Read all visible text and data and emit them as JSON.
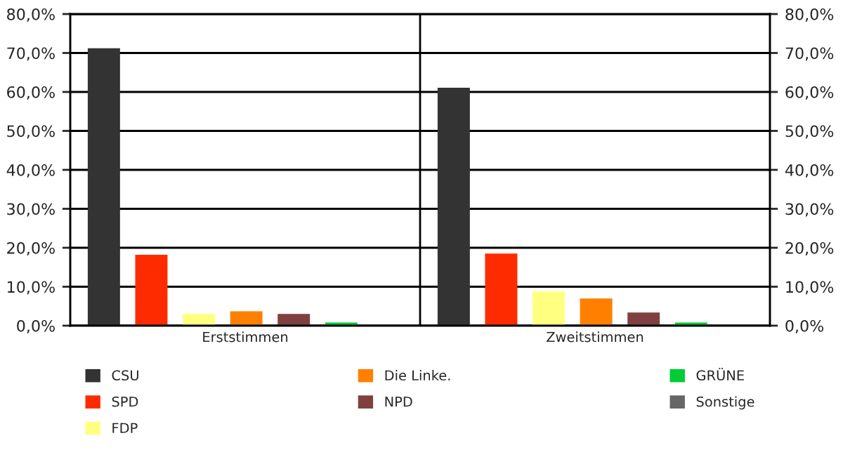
{
  "chart_data": {
    "type": "bar",
    "categories": [
      "Erststimmen",
      "Zweitstimmen"
    ],
    "series": [
      {
        "name": "CSU",
        "color": "#333333",
        "values": [
          71.2,
          61.1
        ]
      },
      {
        "name": "SPD",
        "color": "#ff2b00",
        "values": [
          18.2,
          18.5
        ]
      },
      {
        "name": "FDP",
        "color": "#ffff80",
        "values": [
          3.0,
          8.8
        ]
      },
      {
        "name": "Die Linke.",
        "color": "#ff8000",
        "values": [
          3.7,
          7.0
        ]
      },
      {
        "name": "NPD",
        "color": "#804040",
        "values": [
          3.0,
          3.4
        ]
      },
      {
        "name": "GRÜNE",
        "color": "#00cc33",
        "values": [
          0.8,
          0.8
        ]
      },
      {
        "name": "Sonstige",
        "color": "#666666",
        "values": [
          0,
          0
        ]
      }
    ],
    "ylim": [
      0,
      80
    ],
    "yticks": [
      {
        "value": 0,
        "label": "0,0%"
      },
      {
        "value": 10,
        "label": "10,0%"
      },
      {
        "value": 20,
        "label": "20,0%"
      },
      {
        "value": 30,
        "label": "30,0%"
      },
      {
        "value": 40,
        "label": "40,0%"
      },
      {
        "value": 50,
        "label": "50,0%"
      },
      {
        "value": 60,
        "label": "60,0%"
      },
      {
        "value": 70,
        "label": "70,0%"
      },
      {
        "value": 80,
        "label": "80,0%"
      }
    ],
    "y2lim": [
      0,
      80
    ],
    "y2ticks": [
      {
        "value": 0,
        "label": "0,0%"
      },
      {
        "value": 10,
        "label": "10,0%"
      },
      {
        "value": 20,
        "label": "20,0%"
      },
      {
        "value": 30,
        "label": "30,0%"
      },
      {
        "value": 40,
        "label": "40,0%"
      },
      {
        "value": 50,
        "label": "50,0%"
      },
      {
        "value": 60,
        "label": "60,0%"
      },
      {
        "value": 70,
        "label": "70,0%"
      },
      {
        "value": 80,
        "label": "80,0%"
      }
    ],
    "grid": "y",
    "legend": "bottom"
  }
}
